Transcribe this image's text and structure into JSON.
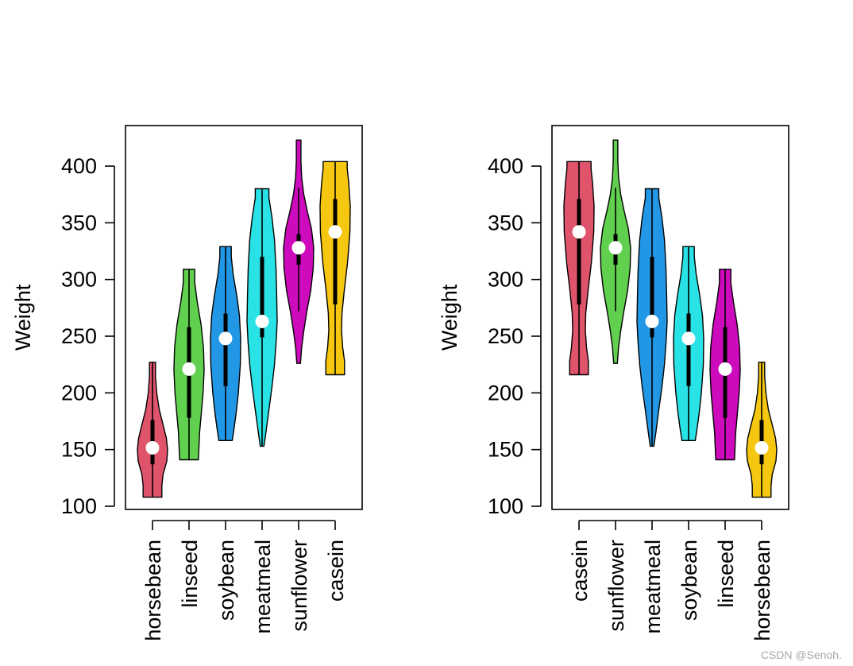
{
  "chart_data": [
    {
      "type": "violin",
      "title": "",
      "xlabel": "",
      "ylabel": "Weight",
      "ylim": [
        100,
        425
      ],
      "yticks": [
        100,
        150,
        200,
        250,
        300,
        350,
        400
      ],
      "categories": [
        "horsebean",
        "linseed",
        "soybean",
        "meatmeal",
        "sunflower",
        "casein"
      ],
      "colors": [
        "#DF536B",
        "#61D04F",
        "#2297E6",
        "#28E2E5",
        "#CD0BBC",
        "#F5C710"
      ],
      "violins": [
        {
          "name": "horsebean",
          "min": 108,
          "max": 227,
          "q1": 137,
          "median": 151.5,
          "q3": 176,
          "whisker_low": 108,
          "whisker_high": 227,
          "profile": [
            [
              108,
              0.62
            ],
            [
              118,
              0.62
            ],
            [
              128,
              0.7
            ],
            [
              140,
              0.95
            ],
            [
              150,
              1.0
            ],
            [
              160,
              0.92
            ],
            [
              172,
              0.7
            ],
            [
              185,
              0.45
            ],
            [
              200,
              0.28
            ],
            [
              215,
              0.2
            ],
            [
              227,
              0.2
            ]
          ]
        },
        {
          "name": "linseed",
          "min": 141,
          "max": 309,
          "q1": 178,
          "median": 221,
          "q3": 258,
          "whisker_low": 141,
          "whisker_high": 309,
          "profile": [
            [
              141,
              0.62
            ],
            [
              152,
              0.66
            ],
            [
              165,
              0.7
            ],
            [
              180,
              0.8
            ],
            [
              200,
              0.93
            ],
            [
              220,
              1.0
            ],
            [
              240,
              0.96
            ],
            [
              260,
              0.8
            ],
            [
              280,
              0.55
            ],
            [
              297,
              0.38
            ],
            [
              309,
              0.38
            ]
          ]
        },
        {
          "name": "soybean",
          "min": 158,
          "max": 329,
          "q1": 206,
          "median": 248,
          "q3": 270,
          "whisker_low": 158,
          "whisker_high": 329,
          "profile": [
            [
              158,
              0.44
            ],
            [
              168,
              0.56
            ],
            [
              182,
              0.7
            ],
            [
              200,
              0.85
            ],
            [
              225,
              0.98
            ],
            [
              248,
              1.0
            ],
            [
              268,
              0.92
            ],
            [
              285,
              0.75
            ],
            [
              305,
              0.5
            ],
            [
              320,
              0.38
            ],
            [
              329,
              0.38
            ]
          ]
        },
        {
          "name": "meatmeal",
          "min": 153,
          "max": 380,
          "q1": 249,
          "median": 263,
          "q3": 320,
          "whisker_low": 153,
          "whisker_high": 380,
          "profile": [
            [
              153,
              0.12
            ],
            [
              165,
              0.25
            ],
            [
              185,
              0.45
            ],
            [
              205,
              0.65
            ],
            [
              225,
              0.82
            ],
            [
              245,
              0.93
            ],
            [
              263,
              1.0
            ],
            [
              285,
              0.97
            ],
            [
              310,
              0.92
            ],
            [
              335,
              0.82
            ],
            [
              355,
              0.65
            ],
            [
              372,
              0.45
            ],
            [
              380,
              0.45
            ]
          ]
        },
        {
          "name": "sunflower",
          "min": 226,
          "max": 423,
          "q1": 313,
          "median": 328,
          "q3": 340,
          "whisker_low": 272,
          "whisker_high": 381,
          "profile": [
            [
              226,
              0.12
            ],
            [
              240,
              0.2
            ],
            [
              255,
              0.35
            ],
            [
              272,
              0.55
            ],
            [
              290,
              0.8
            ],
            [
              310,
              0.97
            ],
            [
              328,
              1.0
            ],
            [
              345,
              0.85
            ],
            [
              360,
              0.58
            ],
            [
              375,
              0.34
            ],
            [
              390,
              0.2
            ],
            [
              405,
              0.15
            ],
            [
              423,
              0.15
            ]
          ]
        },
        {
          "name": "casein",
          "min": 216,
          "max": 404,
          "q1": 278,
          "median": 342,
          "q3": 371,
          "whisker_low": 216,
          "whisker_high": 404,
          "profile": [
            [
              216,
              0.62
            ],
            [
              228,
              0.62
            ],
            [
              240,
              0.5
            ],
            [
              255,
              0.42
            ],
            [
              270,
              0.45
            ],
            [
              290,
              0.6
            ],
            [
              315,
              0.82
            ],
            [
              342,
              0.98
            ],
            [
              365,
              1.0
            ],
            [
              385,
              0.9
            ],
            [
              398,
              0.8
            ],
            [
              404,
              0.8
            ]
          ]
        }
      ]
    },
    {
      "type": "violin",
      "title": "",
      "xlabel": "",
      "ylabel": "Weight",
      "ylim": [
        100,
        425
      ],
      "yticks": [
        100,
        150,
        200,
        250,
        300,
        350,
        400
      ],
      "categories": [
        "casein",
        "sunflower",
        "meatmeal",
        "soybean",
        "linseed",
        "horsebean"
      ],
      "colors": [
        "#DF536B",
        "#61D04F",
        "#2297E6",
        "#28E2E5",
        "#CD0BBC",
        "#F5C710"
      ],
      "violins": [
        {
          "name": "casein",
          "min": 216,
          "max": 404,
          "q1": 278,
          "median": 342,
          "q3": 371,
          "whisker_low": 216,
          "whisker_high": 404,
          "profile": [
            [
              216,
              0.62
            ],
            [
              228,
              0.62
            ],
            [
              240,
              0.5
            ],
            [
              255,
              0.42
            ],
            [
              270,
              0.45
            ],
            [
              290,
              0.6
            ],
            [
              315,
              0.82
            ],
            [
              342,
              0.98
            ],
            [
              365,
              1.0
            ],
            [
              385,
              0.9
            ],
            [
              398,
              0.8
            ],
            [
              404,
              0.8
            ]
          ]
        },
        {
          "name": "sunflower",
          "min": 226,
          "max": 423,
          "q1": 313,
          "median": 328,
          "q3": 340,
          "whisker_low": 272,
          "whisker_high": 381,
          "profile": [
            [
              226,
              0.12
            ],
            [
              240,
              0.2
            ],
            [
              255,
              0.35
            ],
            [
              272,
              0.55
            ],
            [
              290,
              0.8
            ],
            [
              310,
              0.97
            ],
            [
              328,
              1.0
            ],
            [
              345,
              0.85
            ],
            [
              360,
              0.58
            ],
            [
              375,
              0.34
            ],
            [
              390,
              0.2
            ],
            [
              405,
              0.15
            ],
            [
              423,
              0.15
            ]
          ]
        },
        {
          "name": "meatmeal",
          "min": 153,
          "max": 380,
          "q1": 249,
          "median": 263,
          "q3": 320,
          "whisker_low": 153,
          "whisker_high": 380,
          "profile": [
            [
              153,
              0.12
            ],
            [
              165,
              0.25
            ],
            [
              185,
              0.45
            ],
            [
              205,
              0.65
            ],
            [
              225,
              0.82
            ],
            [
              245,
              0.93
            ],
            [
              263,
              1.0
            ],
            [
              285,
              0.97
            ],
            [
              310,
              0.92
            ],
            [
              335,
              0.82
            ],
            [
              355,
              0.65
            ],
            [
              372,
              0.45
            ],
            [
              380,
              0.45
            ]
          ]
        },
        {
          "name": "soybean",
          "min": 158,
          "max": 329,
          "q1": 206,
          "median": 248,
          "q3": 270,
          "whisker_low": 158,
          "whisker_high": 329,
          "profile": [
            [
              158,
              0.44
            ],
            [
              168,
              0.56
            ],
            [
              182,
              0.7
            ],
            [
              200,
              0.85
            ],
            [
              225,
              0.98
            ],
            [
              248,
              1.0
            ],
            [
              268,
              0.92
            ],
            [
              285,
              0.75
            ],
            [
              305,
              0.5
            ],
            [
              320,
              0.38
            ],
            [
              329,
              0.38
            ]
          ]
        },
        {
          "name": "linseed",
          "min": 141,
          "max": 309,
          "q1": 178,
          "median": 221,
          "q3": 258,
          "whisker_low": 141,
          "whisker_high": 309,
          "profile": [
            [
              141,
              0.62
            ],
            [
              152,
              0.66
            ],
            [
              165,
              0.7
            ],
            [
              180,
              0.8
            ],
            [
              200,
              0.93
            ],
            [
              220,
              1.0
            ],
            [
              240,
              0.96
            ],
            [
              260,
              0.8
            ],
            [
              280,
              0.55
            ],
            [
              297,
              0.38
            ],
            [
              309,
              0.38
            ]
          ]
        },
        {
          "name": "horsebean",
          "min": 108,
          "max": 227,
          "q1": 137,
          "median": 151.5,
          "q3": 176,
          "whisker_low": 108,
          "whisker_high": 227,
          "profile": [
            [
              108,
              0.62
            ],
            [
              118,
              0.62
            ],
            [
              128,
              0.7
            ],
            [
              140,
              0.95
            ],
            [
              150,
              1.0
            ],
            [
              160,
              0.92
            ],
            [
              172,
              0.7
            ],
            [
              185,
              0.45
            ],
            [
              200,
              0.28
            ],
            [
              215,
              0.2
            ],
            [
              227,
              0.2
            ]
          ]
        }
      ]
    }
  ],
  "watermark": "CSDN @Senoh."
}
